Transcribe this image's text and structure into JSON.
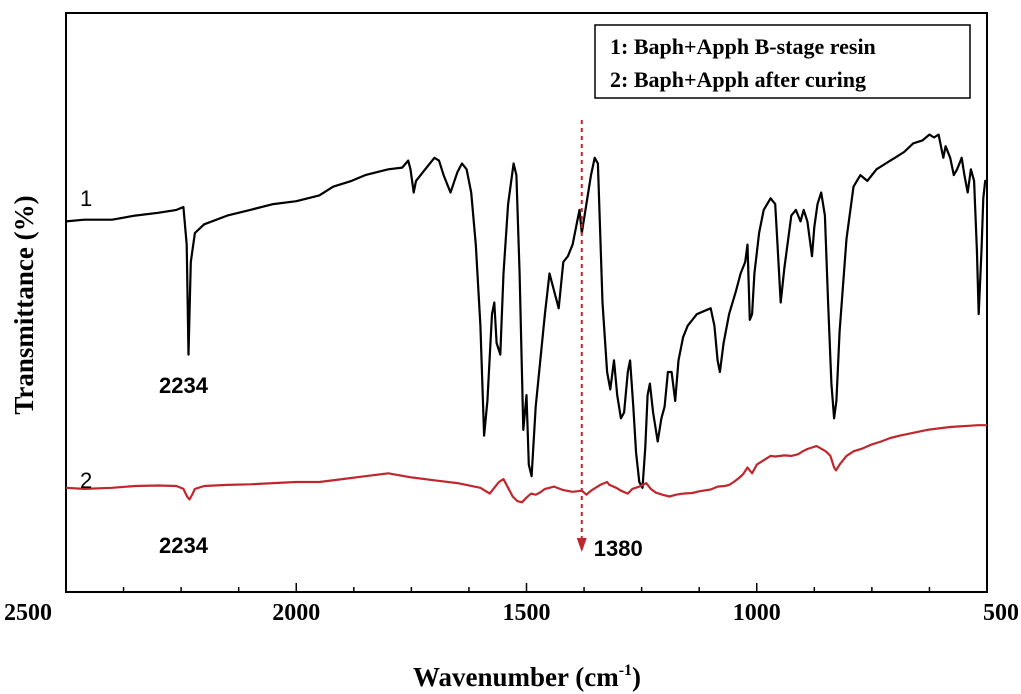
{
  "chart_data": {
    "type": "line",
    "title": "",
    "xlabel": "Wavenumber (cm",
    "xlabel_sup": "-1",
    "xlabel_end": ")",
    "ylabel": "Transmittance (%)",
    "xlim": [
      2500,
      500
    ],
    "x_reversed": true,
    "ylim": [
      0,
      100
    ],
    "y_ticks_visible": false,
    "grid": false,
    "x_ticks": [
      2500,
      2000,
      1500,
      1000,
      500
    ],
    "x_tick_labels": [
      "2500",
      "2000",
      "1500",
      "1000",
      "500"
    ],
    "legend": {
      "placement": "top-right",
      "entries": [
        "1: Baph+Apph B-stage resin",
        "2: Baph+Apph after curing"
      ]
    },
    "series": [
      {
        "label": "1",
        "color": "#000000",
        "points": [
          [
            2500,
            64
          ],
          [
            2460,
            64.3
          ],
          [
            2400,
            64.3
          ],
          [
            2350,
            65
          ],
          [
            2300,
            65.5
          ],
          [
            2260,
            66
          ],
          [
            2245,
            66.5
          ],
          [
            2238,
            60
          ],
          [
            2234,
            41
          ],
          [
            2229,
            57
          ],
          [
            2220,
            62
          ],
          [
            2200,
            63.5
          ],
          [
            2150,
            65
          ],
          [
            2100,
            66
          ],
          [
            2050,
            67
          ],
          [
            2000,
            67.5
          ],
          [
            1950,
            68.5
          ],
          [
            1920,
            70
          ],
          [
            1880,
            71
          ],
          [
            1850,
            72
          ],
          [
            1800,
            73
          ],
          [
            1770,
            73.3
          ],
          [
            1757,
            74.5
          ],
          [
            1752,
            73
          ],
          [
            1745,
            69
          ],
          [
            1740,
            71
          ],
          [
            1720,
            73
          ],
          [
            1700,
            75
          ],
          [
            1690,
            74.5
          ],
          [
            1680,
            72
          ],
          [
            1665,
            69
          ],
          [
            1650,
            72.5
          ],
          [
            1640,
            74
          ],
          [
            1630,
            73
          ],
          [
            1620,
            69
          ],
          [
            1610,
            60
          ],
          [
            1600,
            46
          ],
          [
            1592,
            27
          ],
          [
            1585,
            33
          ],
          [
            1575,
            48
          ],
          [
            1570,
            50
          ],
          [
            1565,
            43
          ],
          [
            1557,
            41
          ],
          [
            1550,
            55
          ],
          [
            1540,
            67
          ],
          [
            1528,
            74
          ],
          [
            1522,
            72
          ],
          [
            1515,
            55
          ],
          [
            1507,
            28
          ],
          [
            1500,
            34
          ],
          [
            1495,
            22
          ],
          [
            1489,
            20
          ],
          [
            1480,
            32
          ],
          [
            1470,
            40
          ],
          [
            1460,
            48
          ],
          [
            1450,
            55
          ],
          [
            1440,
            52
          ],
          [
            1430,
            49
          ],
          [
            1420,
            57
          ],
          [
            1410,
            58
          ],
          [
            1400,
            60
          ],
          [
            1390,
            64
          ],
          [
            1385,
            66
          ],
          [
            1380,
            62
          ],
          [
            1370,
            67
          ],
          [
            1360,
            72
          ],
          [
            1352,
            75
          ],
          [
            1345,
            74
          ],
          [
            1335,
            50
          ],
          [
            1325,
            38
          ],
          [
            1318,
            35
          ],
          [
            1310,
            40
          ],
          [
            1303,
            34
          ],
          [
            1295,
            30
          ],
          [
            1288,
            31
          ],
          [
            1280,
            38
          ],
          [
            1275,
            40
          ],
          [
            1268,
            32
          ],
          [
            1262,
            24
          ],
          [
            1255,
            19
          ],
          [
            1248,
            18
          ],
          [
            1242,
            25
          ],
          [
            1237,
            34
          ],
          [
            1232,
            36
          ],
          [
            1225,
            31
          ],
          [
            1215,
            26
          ],
          [
            1207,
            30
          ],
          [
            1200,
            32
          ],
          [
            1193,
            38
          ],
          [
            1185,
            38
          ],
          [
            1177,
            33
          ],
          [
            1170,
            40
          ],
          [
            1160,
            44
          ],
          [
            1150,
            46
          ],
          [
            1140,
            47
          ],
          [
            1130,
            48
          ],
          [
            1115,
            48.5
          ],
          [
            1100,
            49
          ],
          [
            1092,
            46
          ],
          [
            1085,
            40
          ],
          [
            1080,
            38
          ],
          [
            1072,
            43
          ],
          [
            1060,
            48
          ],
          [
            1045,
            52
          ],
          [
            1035,
            55
          ],
          [
            1025,
            57
          ],
          [
            1020,
            60
          ],
          [
            1015,
            47
          ],
          [
            1010,
            48
          ],
          [
            1005,
            55
          ],
          [
            995,
            62
          ],
          [
            985,
            66
          ],
          [
            970,
            68
          ],
          [
            960,
            67
          ],
          [
            955,
            60
          ],
          [
            948,
            50
          ],
          [
            940,
            56
          ],
          [
            925,
            65
          ],
          [
            915,
            66
          ],
          [
            905,
            64
          ],
          [
            898,
            66
          ],
          [
            890,
            64
          ],
          [
            880,
            58
          ],
          [
            875,
            63
          ],
          [
            868,
            67
          ],
          [
            860,
            69
          ],
          [
            852,
            65
          ],
          [
            845,
            50
          ],
          [
            838,
            36
          ],
          [
            832,
            30
          ],
          [
            827,
            33
          ],
          [
            820,
            45
          ],
          [
            805,
            61
          ],
          [
            790,
            70
          ],
          [
            775,
            72
          ],
          [
            760,
            71
          ],
          [
            740,
            73
          ],
          [
            720,
            74
          ],
          [
            700,
            75
          ],
          [
            680,
            76
          ],
          [
            660,
            77.5
          ],
          [
            640,
            78
          ],
          [
            625,
            79
          ],
          [
            615,
            78.5
          ],
          [
            605,
            79
          ],
          [
            595,
            75
          ],
          [
            590,
            77
          ],
          [
            580,
            75
          ],
          [
            572,
            72
          ],
          [
            565,
            73
          ],
          [
            555,
            75
          ],
          [
            549,
            72
          ],
          [
            542,
            69
          ],
          [
            535,
            73
          ],
          [
            528,
            71
          ],
          [
            522,
            59
          ],
          [
            518,
            48
          ],
          [
            512,
            59
          ],
          [
            508,
            68
          ],
          [
            504,
            71
          ],
          [
            500,
            71
          ]
        ]
      },
      {
        "label": "2",
        "color": "#c0272d",
        "points": [
          [
            2500,
            18
          ],
          [
            2460,
            17.8
          ],
          [
            2400,
            18
          ],
          [
            2350,
            18.3
          ],
          [
            2300,
            18.4
          ],
          [
            2260,
            18.3
          ],
          [
            2245,
            17.8
          ],
          [
            2237,
            16.5
          ],
          [
            2232,
            16
          ],
          [
            2226,
            16.8
          ],
          [
            2220,
            17.8
          ],
          [
            2200,
            18.3
          ],
          [
            2150,
            18.5
          ],
          [
            2100,
            18.6
          ],
          [
            2050,
            18.8
          ],
          [
            2000,
            19
          ],
          [
            1950,
            19
          ],
          [
            1900,
            19.5
          ],
          [
            1850,
            20
          ],
          [
            1800,
            20.5
          ],
          [
            1750,
            19.8
          ],
          [
            1700,
            19.3
          ],
          [
            1650,
            18.8
          ],
          [
            1600,
            18
          ],
          [
            1580,
            17
          ],
          [
            1570,
            18
          ],
          [
            1560,
            19
          ],
          [
            1550,
            19.5
          ],
          [
            1540,
            18
          ],
          [
            1530,
            16.5
          ],
          [
            1520,
            15.7
          ],
          [
            1510,
            15.5
          ],
          [
            1500,
            16.3
          ],
          [
            1490,
            17
          ],
          [
            1480,
            16.8
          ],
          [
            1470,
            17.2
          ],
          [
            1460,
            17.8
          ],
          [
            1450,
            18
          ],
          [
            1440,
            18.2
          ],
          [
            1420,
            17.6
          ],
          [
            1400,
            17.3
          ],
          [
            1380,
            17.5
          ],
          [
            1370,
            16.8
          ],
          [
            1360,
            17.5
          ],
          [
            1350,
            18
          ],
          [
            1340,
            18.5
          ],
          [
            1325,
            19
          ],
          [
            1320,
            18.5
          ],
          [
            1305,
            18
          ],
          [
            1295,
            17.5
          ],
          [
            1280,
            17
          ],
          [
            1270,
            17.8
          ],
          [
            1255,
            18.2
          ],
          [
            1240,
            18.8
          ],
          [
            1230,
            17.8
          ],
          [
            1220,
            17.2
          ],
          [
            1205,
            16.8
          ],
          [
            1190,
            16.5
          ],
          [
            1175,
            16.8
          ],
          [
            1160,
            17
          ],
          [
            1140,
            17.1
          ],
          [
            1125,
            17.4
          ],
          [
            1100,
            17.7
          ],
          [
            1085,
            18.2
          ],
          [
            1070,
            18.3
          ],
          [
            1060,
            18.5
          ],
          [
            1050,
            19
          ],
          [
            1040,
            19.6
          ],
          [
            1030,
            20.3
          ],
          [
            1020,
            21.5
          ],
          [
            1010,
            20.5
          ],
          [
            1000,
            22
          ],
          [
            990,
            22.5
          ],
          [
            980,
            23
          ],
          [
            970,
            23.5
          ],
          [
            960,
            23.4
          ],
          [
            940,
            23.6
          ],
          [
            925,
            23.5
          ],
          [
            910,
            23.8
          ],
          [
            900,
            24.3
          ],
          [
            890,
            24.7
          ],
          [
            870,
            25.2
          ],
          [
            850,
            24.3
          ],
          [
            840,
            23.5
          ],
          [
            832,
            21.5
          ],
          [
            828,
            21
          ],
          [
            820,
            22
          ],
          [
            805,
            23.5
          ],
          [
            790,
            24.3
          ],
          [
            770,
            24.8
          ],
          [
            750,
            25.5
          ],
          [
            730,
            26
          ],
          [
            710,
            26.6
          ],
          [
            690,
            27
          ],
          [
            660,
            27.5
          ],
          [
            630,
            28
          ],
          [
            600,
            28.3
          ],
          [
            580,
            28.5
          ],
          [
            560,
            28.6
          ],
          [
            540,
            28.7
          ],
          [
            520,
            28.8
          ],
          [
            500,
            28.8
          ]
        ]
      }
    ],
    "annotations": [
      {
        "text": "1",
        "target": "series-1-label"
      },
      {
        "text": "2",
        "target": "series-2-label"
      },
      {
        "text": "2234",
        "x": 2234,
        "series": 1
      },
      {
        "text": "2234",
        "x": 2234,
        "series": 2
      },
      {
        "text": "1380",
        "x": 1380,
        "marker": "dotted-arrow"
      }
    ]
  }
}
